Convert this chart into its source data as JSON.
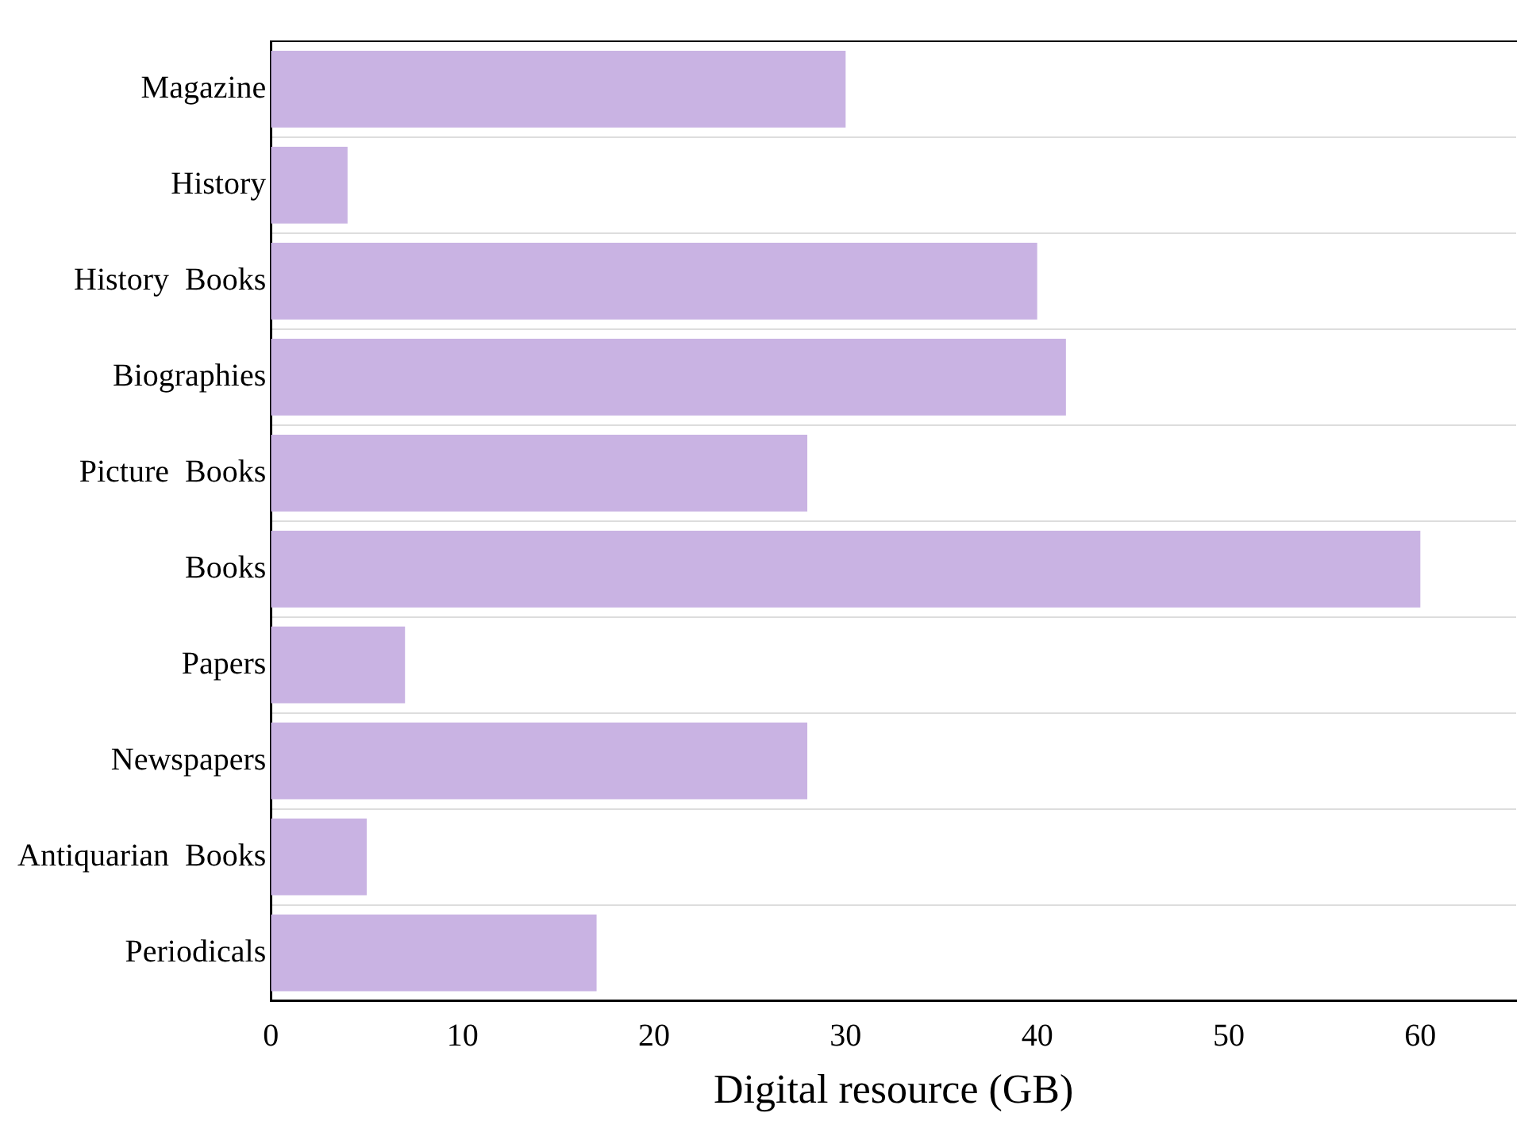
{
  "chart_data": {
    "type": "bar",
    "orientation": "horizontal",
    "xlabel": "Digital resource (GB)",
    "categories": [
      "Magazine",
      "History",
      "History  Books",
      "Biographies",
      "Picture  Books",
      "Books",
      "Papers",
      "Newspapers",
      "Antiquarian  Books",
      "Periodicals"
    ],
    "values": [
      30,
      4,
      40,
      41.5,
      28,
      60,
      7,
      28,
      5,
      17
    ],
    "color": "#c9b3e3",
    "xlim": [
      0,
      65
    ],
    "xticks": [
      0,
      10,
      20,
      30,
      40,
      50,
      60
    ],
    "grid": "y"
  }
}
